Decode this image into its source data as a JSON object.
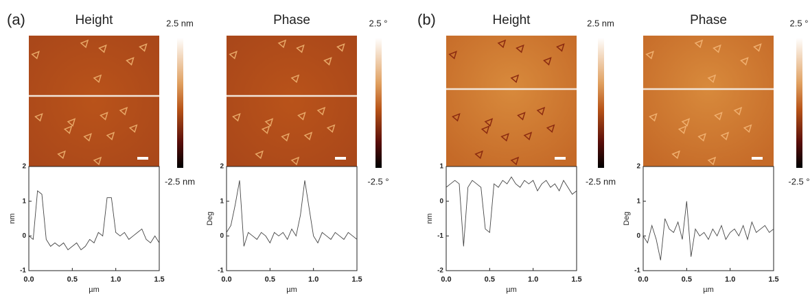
{
  "panel_labels": [
    "(a)",
    "(b)"
  ],
  "chart_data": [
    {
      "type": "line",
      "title": "Height",
      "xlabel": "µm",
      "ylabel": "nm",
      "colorbar_labels": [
        "2.5 nm",
        "-2.5 nm"
      ],
      "x": [
        0,
        0.05,
        0.1,
        0.15,
        0.2,
        0.25,
        0.3,
        0.35,
        0.4,
        0.45,
        0.5,
        0.55,
        0.6,
        0.65,
        0.7,
        0.75,
        0.8,
        0.85,
        0.9,
        0.95,
        1.0,
        1.05,
        1.1,
        1.15,
        1.2,
        1.25,
        1.3,
        1.35,
        1.4,
        1.45,
        1.5
      ],
      "values": [
        0.0,
        -0.1,
        1.3,
        1.2,
        -0.1,
        -0.3,
        -0.2,
        -0.3,
        -0.2,
        -0.4,
        -0.3,
        -0.2,
        -0.4,
        -0.3,
        -0.1,
        -0.2,
        0.1,
        0.0,
        1.1,
        1.1,
        0.1,
        0.0,
        0.1,
        -0.1,
        0.0,
        0.1,
        0.2,
        -0.1,
        -0.2,
        0.0,
        -0.2
      ],
      "xlim": [
        0,
        1.5
      ],
      "ylim": [
        -1,
        2
      ],
      "xticks": [
        {
          "value": 0,
          "label": "0.0"
        },
        0.5,
        {
          "value": 1,
          "label": "1.0"
        },
        1.5
      ],
      "yticks": [
        -1,
        0,
        1,
        2
      ]
    },
    {
      "type": "line",
      "title": "Phase",
      "xlabel": "µm",
      "ylabel": "Deg",
      "colorbar_labels": [
        "2.5 °",
        "-2.5 °"
      ],
      "x": [
        0,
        0.05,
        0.1,
        0.15,
        0.2,
        0.25,
        0.3,
        0.35,
        0.4,
        0.45,
        0.5,
        0.55,
        0.6,
        0.65,
        0.7,
        0.75,
        0.8,
        0.85,
        0.9,
        0.95,
        1.0,
        1.05,
        1.1,
        1.15,
        1.2,
        1.25,
        1.3,
        1.35,
        1.4,
        1.45,
        1.5
      ],
      "values": [
        0.1,
        0.3,
        0.9,
        1.6,
        -0.3,
        0.1,
        0.0,
        -0.1,
        0.1,
        0.0,
        -0.2,
        0.1,
        0.0,
        0.1,
        -0.1,
        0.2,
        0.0,
        0.6,
        1.6,
        0.8,
        0.0,
        -0.2,
        0.1,
        0.0,
        -0.1,
        0.1,
        0.0,
        -0.1,
        0.1,
        0.0,
        -0.1
      ],
      "xlim": [
        0,
        1.5
      ],
      "ylim": [
        -1,
        2
      ],
      "xticks": [
        {
          "value": 0,
          "label": "0.0"
        },
        0.5,
        {
          "value": 1,
          "label": "1.0"
        },
        1.5
      ],
      "yticks": [
        -1,
        0,
        1,
        2
      ]
    },
    {
      "type": "line",
      "title": "Height",
      "xlabel": "µm",
      "ylabel": "nm",
      "colorbar_labels": [
        "2.5 nm",
        "-2.5 nm"
      ],
      "x": [
        0,
        0.05,
        0.1,
        0.15,
        0.2,
        0.25,
        0.3,
        0.35,
        0.4,
        0.45,
        0.5,
        0.55,
        0.6,
        0.65,
        0.7,
        0.75,
        0.8,
        0.85,
        0.9,
        0.95,
        1.0,
        1.05,
        1.1,
        1.15,
        1.2,
        1.25,
        1.3,
        1.35,
        1.4,
        1.45,
        1.5
      ],
      "values": [
        0.4,
        0.5,
        0.6,
        0.5,
        -1.3,
        0.4,
        0.6,
        0.5,
        0.4,
        -0.8,
        -0.9,
        0.5,
        0.4,
        0.6,
        0.5,
        0.7,
        0.5,
        0.4,
        0.6,
        0.5,
        0.6,
        0.3,
        0.5,
        0.6,
        0.4,
        0.5,
        0.3,
        0.6,
        0.4,
        0.2,
        0.3
      ],
      "xlim": [
        0,
        1.5
      ],
      "ylim": [
        -2,
        1
      ],
      "xticks": [
        {
          "value": 0,
          "label": "0.0"
        },
        0.5,
        {
          "value": 1,
          "label": "1.0"
        },
        1.5
      ],
      "yticks": [
        -2,
        -1,
        0,
        1
      ]
    },
    {
      "type": "line",
      "title": "Phase",
      "xlabel": "µm",
      "ylabel": "Deg",
      "colorbar_labels": [
        "2.5 °",
        "-2.5 °"
      ],
      "x": [
        0,
        0.05,
        0.1,
        0.15,
        0.2,
        0.25,
        0.3,
        0.35,
        0.4,
        0.45,
        0.5,
        0.55,
        0.6,
        0.65,
        0.7,
        0.75,
        0.8,
        0.85,
        0.9,
        0.95,
        1.0,
        1.05,
        1.1,
        1.15,
        1.2,
        1.25,
        1.3,
        1.35,
        1.4,
        1.45,
        1.5
      ],
      "values": [
        0.0,
        -0.2,
        0.3,
        -0.1,
        -0.7,
        0.5,
        0.2,
        0.1,
        0.4,
        -0.1,
        1.0,
        -0.6,
        0.2,
        0.0,
        0.1,
        -0.1,
        0.2,
        0.0,
        0.3,
        -0.1,
        0.1,
        0.2,
        0.0,
        0.3,
        -0.1,
        0.4,
        0.1,
        0.2,
        0.3,
        0.1,
        0.2
      ],
      "xlim": [
        0,
        1.5
      ],
      "ylim": [
        -1,
        2
      ],
      "xticks": [
        {
          "value": 0,
          "label": "0.0"
        },
        0.5,
        {
          "value": 1,
          "label": "1.0"
        },
        1.5
      ],
      "yticks": [
        -1,
        0,
        1,
        2
      ]
    }
  ]
}
